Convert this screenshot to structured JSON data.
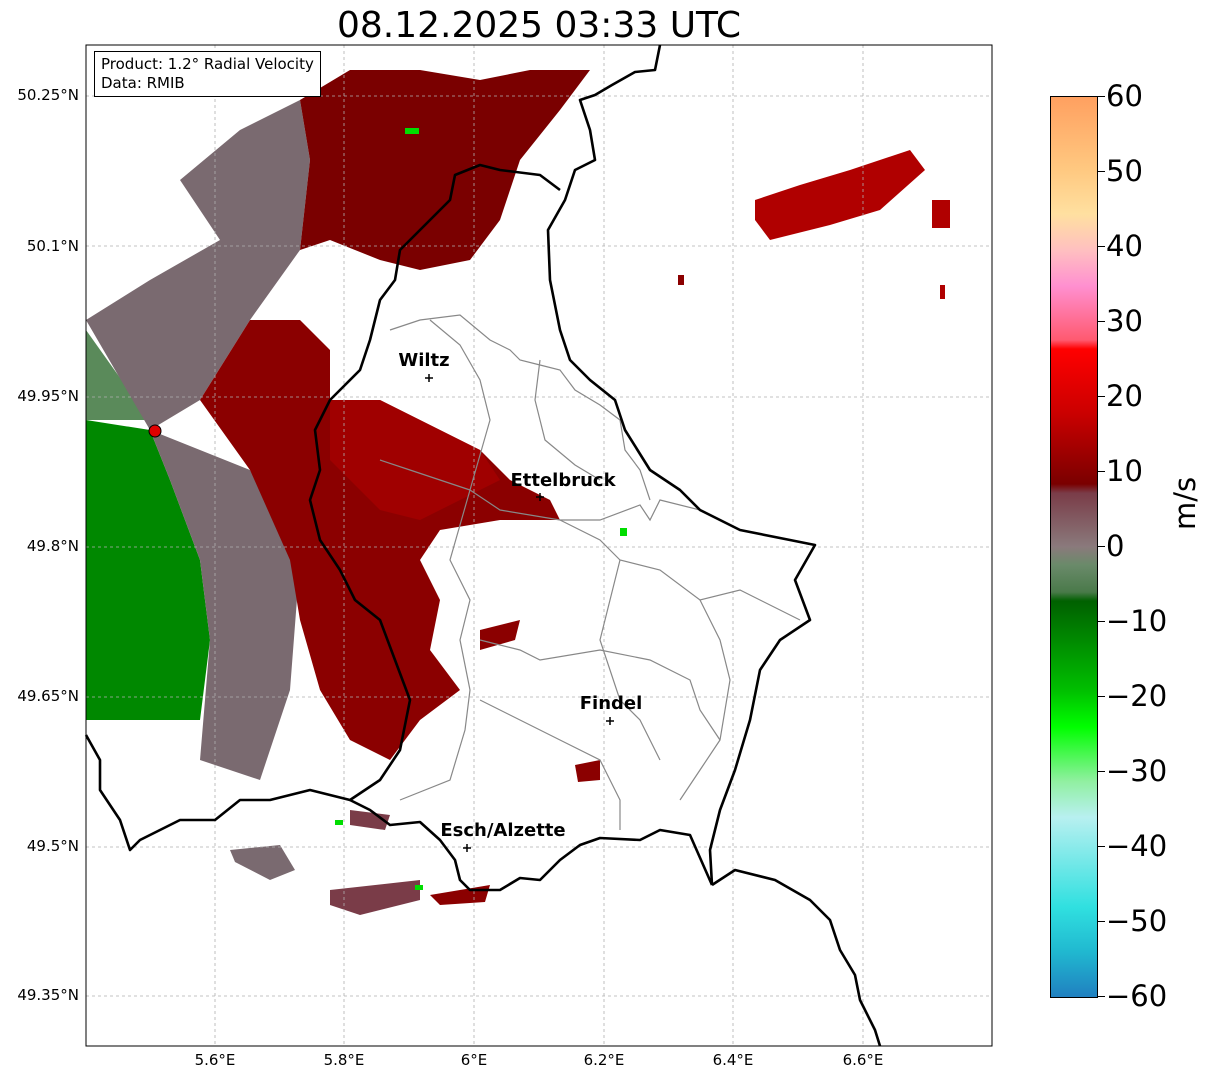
{
  "title": "08.12.2025 03:33 UTC",
  "info_box": {
    "product": "Product: 1.2° Radial Velocity",
    "data": "Data: RMIB"
  },
  "axes": {
    "latitude_labels": [
      "50.25°N",
      "50.1°N",
      "49.95°N",
      "49.8°N",
      "49.65°N",
      "49.5°N",
      "49.35°N"
    ],
    "longitude_labels": [
      "5.6°E",
      "5.8°E",
      "6°E",
      "6.2°E",
      "6.4°E",
      "6.6°E"
    ],
    "grid": true
  },
  "cities": [
    {
      "name": "Wiltz"
    },
    {
      "name": "Ettelbruck"
    },
    {
      "name": "Findel"
    },
    {
      "name": "Esch/Alzette"
    }
  ],
  "radar_site": {
    "color": "#e00000"
  },
  "colorbar": {
    "unit": "m/s",
    "range": [
      -60,
      60
    ],
    "ticks": [
      "60",
      "50",
      "40",
      "30",
      "20",
      "10",
      "0",
      "−10",
      "−20",
      "−30",
      "−40",
      "−50",
      "−60"
    ]
  },
  "colors": {
    "inbound_strong": "#008800",
    "neutral": "#7a6a70",
    "outbound": "#8b0000",
    "outbound_bright": "#b00000",
    "border": "#000000",
    "canton": "#888888"
  }
}
